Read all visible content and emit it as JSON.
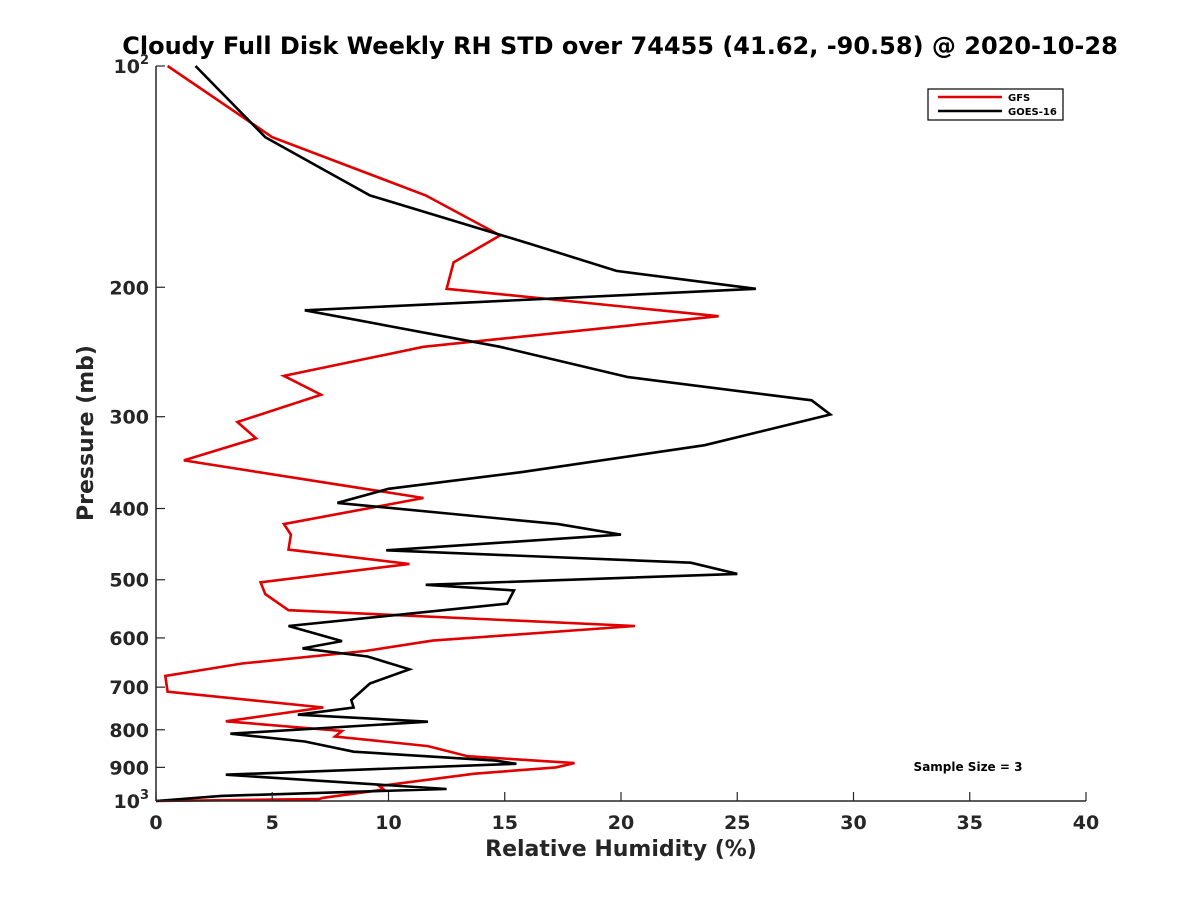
{
  "chart_data": {
    "type": "line",
    "title": "Cloudy Full Disk Weekly RH STD over 74455 (41.62, -90.58) @ 2020-10-28",
    "xlabel": "Relative Humidity (%)",
    "ylabel": "Pressure (mb)",
    "xlim": [
      0,
      40
    ],
    "ylim": [
      100,
      1000
    ],
    "y_scale": "log",
    "y_reversed": true,
    "grid": false,
    "legend_position": "top-right",
    "x_ticks": [
      0,
      5,
      10,
      15,
      20,
      25,
      30,
      35,
      40
    ],
    "y_ticks": [
      {
        "value": 100,
        "base": "10",
        "exp": "2"
      },
      {
        "value": 200,
        "label": "200"
      },
      {
        "value": 300,
        "label": "300"
      },
      {
        "value": 400,
        "label": "400"
      },
      {
        "value": 500,
        "label": "500"
      },
      {
        "value": 600,
        "label": "600"
      },
      {
        "value": 700,
        "label": "700"
      },
      {
        "value": 800,
        "label": "800"
      },
      {
        "value": 900,
        "label": "900"
      },
      {
        "value": 1000,
        "base": "10",
        "exp": "3"
      }
    ],
    "annotation": "Sample Size = 3",
    "series": [
      {
        "name": "GFS",
        "color": "#e00000",
        "points": [
          [
            0.5,
            100
          ],
          [
            5,
            125
          ],
          [
            11.6,
            150
          ],
          [
            14.8,
            170
          ],
          [
            12.8,
            185
          ],
          [
            12.5,
            201
          ],
          [
            24.2,
            219
          ],
          [
            11.5,
            241
          ],
          [
            5.5,
            264
          ],
          [
            7.1,
            280
          ],
          [
            3.5,
            305
          ],
          [
            4.3,
            321
          ],
          [
            1.2,
            344
          ],
          [
            11.5,
            387
          ],
          [
            5.5,
            420
          ],
          [
            5.8,
            434
          ],
          [
            5.7,
            455
          ],
          [
            10.9,
            476
          ],
          [
            4.5,
            504
          ],
          [
            4.7,
            523
          ],
          [
            5.7,
            550
          ],
          [
            20.6,
            578
          ],
          [
            11.9,
            605
          ],
          [
            9,
            625
          ],
          [
            3.7,
            650
          ],
          [
            0.4,
            676
          ],
          [
            0.5,
            710
          ],
          [
            7.2,
            746
          ],
          [
            3,
            779
          ],
          [
            8,
            803
          ],
          [
            7.7,
            817
          ],
          [
            11.7,
            842
          ],
          [
            13.4,
            869
          ],
          [
            18,
            888
          ],
          [
            17.2,
            900
          ],
          [
            13.7,
            918
          ],
          [
            9.6,
            954
          ],
          [
            9.8,
            965
          ],
          [
            7.2,
            990
          ],
          [
            7,
            994
          ],
          [
            0,
            1000
          ]
        ]
      },
      {
        "name": "GOES-16",
        "color": "#000000",
        "points": [
          [
            1.7,
            100
          ],
          [
            4.7,
            125
          ],
          [
            9.2,
            150
          ],
          [
            16.2,
            175
          ],
          [
            19.8,
            190
          ],
          [
            25.8,
            201
          ],
          [
            6.4,
            215
          ],
          [
            14.8,
            241
          ],
          [
            20.3,
            265
          ],
          [
            28.2,
            285
          ],
          [
            29,
            298
          ],
          [
            23.6,
            328
          ],
          [
            15.7,
            357
          ],
          [
            10,
            376
          ],
          [
            7.8,
            393
          ],
          [
            17.3,
            420
          ],
          [
            20,
            434
          ],
          [
            9.9,
            456
          ],
          [
            23,
            474
          ],
          [
            25,
            491
          ],
          [
            11.6,
            508
          ],
          [
            15.4,
            517
          ],
          [
            15.1,
            539
          ],
          [
            5.7,
            578
          ],
          [
            8,
            606
          ],
          [
            6.3,
            620
          ],
          [
            9.1,
            636
          ],
          [
            10.9,
            662
          ],
          [
            9.2,
            692
          ],
          [
            8.4,
            729
          ],
          [
            8.5,
            746
          ],
          [
            6.1,
            763
          ],
          [
            11.7,
            780
          ],
          [
            3.2,
            810
          ],
          [
            6.4,
            830
          ],
          [
            8.5,
            857
          ],
          [
            14.6,
            881
          ],
          [
            15.5,
            890
          ],
          [
            3,
            921
          ],
          [
            12.5,
            963
          ],
          [
            2.8,
            984
          ],
          [
            0,
            1000
          ]
        ]
      }
    ]
  }
}
